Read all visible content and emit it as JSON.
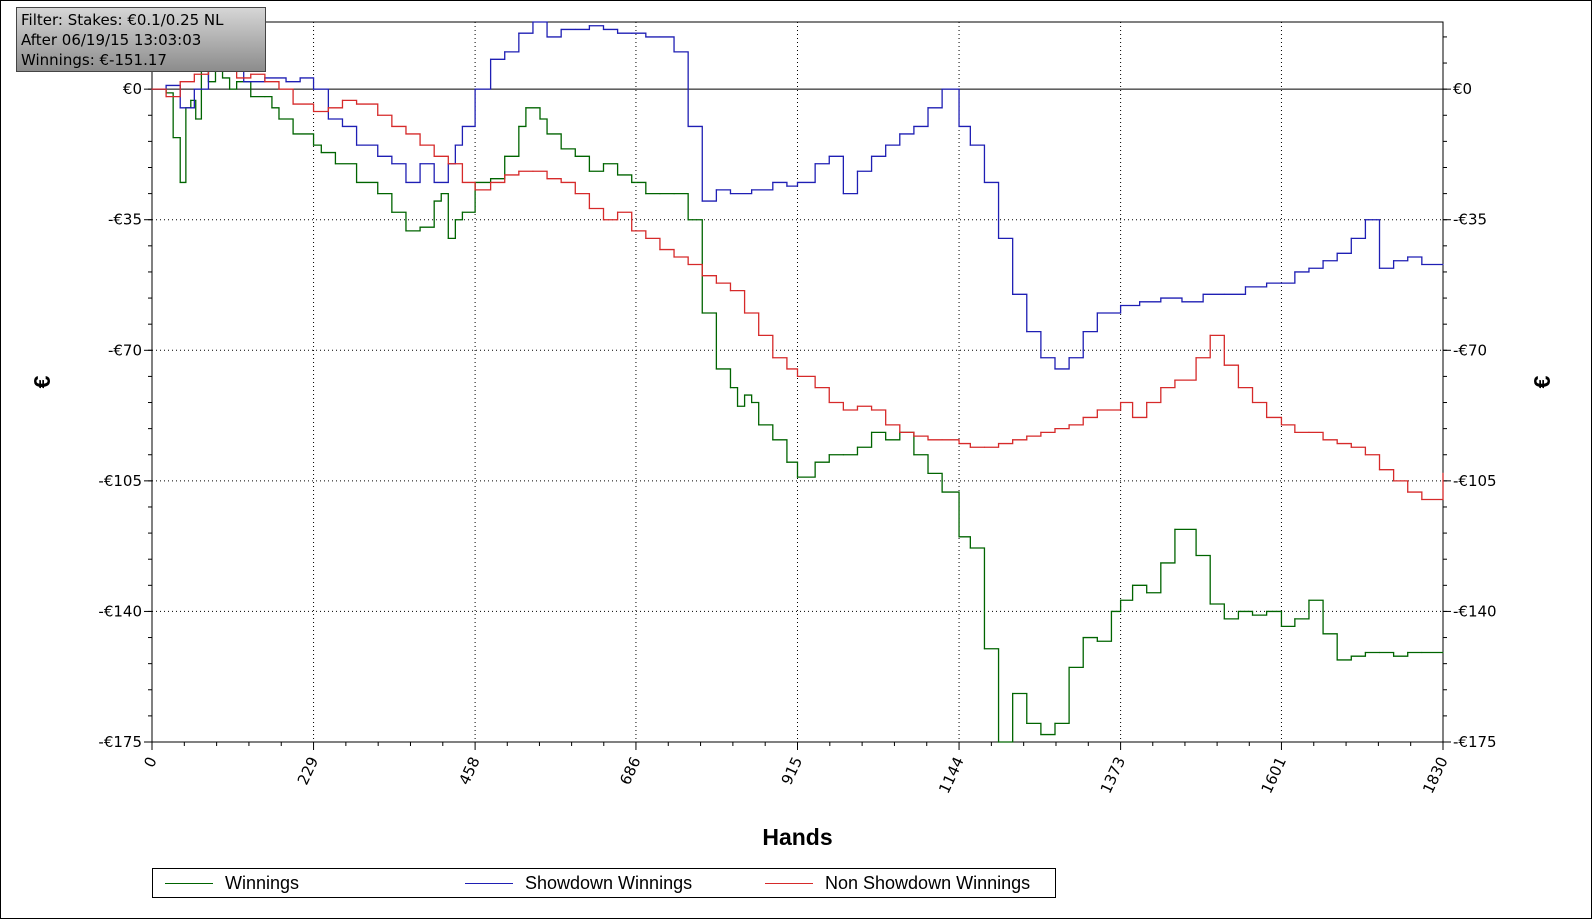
{
  "info": {
    "filter": "Filter: Stakes: €0.1/0.25 NL",
    "after": "After 06/19/15 13:03:03",
    "winnings": "Winnings: €-151.17"
  },
  "chart_data": {
    "type": "line",
    "xlabel": "Hands",
    "ylabel": "€",
    "xlim": [
      0,
      1830
    ],
    "ylim": [
      -175,
      18
    ],
    "x_ticks": [
      "0",
      "229",
      "458",
      "686",
      "915",
      "1144",
      "1373",
      "1601",
      "1830"
    ],
    "y_ticks": [
      "€0",
      "-€35",
      "-€70",
      "-€105",
      "-€140",
      "-€175"
    ],
    "y_tick_values": [
      0,
      -35,
      -70,
      -105,
      -140,
      -175
    ],
    "grid": true,
    "legend_position": "bottom",
    "series": [
      {
        "name": "Winnings",
        "color": "#006400",
        "x": [
          0,
          20,
          30,
          40,
          48,
          55,
          62,
          70,
          80,
          90,
          100,
          110,
          120,
          140,
          160,
          170,
          180,
          200,
          229,
          240,
          260,
          290,
          320,
          340,
          360,
          380,
          400,
          410,
          420,
          430,
          440,
          458,
          480,
          500,
          520,
          530,
          550,
          560,
          580,
          600,
          620,
          640,
          660,
          680,
          700,
          720,
          740,
          760,
          780,
          800,
          820,
          825,
          830,
          840,
          850,
          860,
          880,
          900,
          915,
          940,
          960,
          980,
          1000,
          1020,
          1040,
          1060,
          1080,
          1100,
          1120,
          1144,
          1160,
          1180,
          1200,
          1220,
          1240,
          1260,
          1280,
          1300,
          1320,
          1340,
          1360,
          1373,
          1390,
          1410,
          1430,
          1450,
          1480,
          1500,
          1520,
          1540,
          1560,
          1580,
          1601,
          1620,
          1640,
          1660,
          1680,
          1700,
          1720,
          1740,
          1760,
          1780,
          1800,
          1830
        ],
        "y": [
          0,
          -1,
          -13,
          -25,
          -5,
          -3,
          -8,
          5,
          2,
          8,
          3,
          0,
          2,
          -2,
          -2,
          -5,
          -8,
          -12,
          -15,
          -17,
          -20,
          -25,
          -28,
          -33,
          -38,
          -37,
          -30,
          -28,
          -40,
          -35,
          -33,
          -25,
          -24,
          -18,
          -10,
          -5,
          -8,
          -12,
          -16,
          -18,
          -22,
          -20,
          -23,
          -25,
          -28,
          -28,
          -28,
          -35,
          -60,
          -75,
          -80,
          -80,
          -85,
          -82,
          -84,
          -90,
          -94,
          -100,
          -104,
          -100,
          -98,
          -98,
          -96,
          -92,
          -94,
          -92,
          -98,
          -103,
          -108,
          -120,
          -123,
          -150,
          -175,
          -162,
          -170,
          -173,
          -170,
          -155,
          -147,
          -148,
          -140,
          -137,
          -133,
          -135,
          -127,
          -118,
          -125,
          -138,
          -142,
          -140,
          -141,
          -140,
          -144,
          -142,
          -137,
          -146,
          -153,
          -152,
          -151,
          -151,
          -152,
          -151,
          -151,
          -151
        ]
      },
      {
        "name": "Showdown Winnings",
        "color": "#1f1fb4",
        "x": [
          0,
          20,
          40,
          60,
          80,
          100,
          130,
          160,
          190,
          210,
          229,
          250,
          270,
          290,
          320,
          340,
          360,
          380,
          400,
          420,
          430,
          440,
          458,
          480,
          500,
          520,
          540,
          560,
          580,
          600,
          620,
          640,
          660,
          680,
          700,
          720,
          740,
          760,
          780,
          800,
          820,
          850,
          880,
          900,
          915,
          940,
          960,
          980,
          1000,
          1020,
          1040,
          1060,
          1080,
          1100,
          1120,
          1144,
          1160,
          1180,
          1200,
          1220,
          1240,
          1260,
          1280,
          1300,
          1320,
          1340,
          1373,
          1400,
          1430,
          1460,
          1490,
          1520,
          1550,
          1580,
          1601,
          1620,
          1640,
          1660,
          1680,
          1700,
          1720,
          1740,
          1760,
          1780,
          1800,
          1830
        ],
        "y": [
          0,
          1,
          -5,
          0,
          5,
          15,
          2,
          3,
          2,
          3,
          0,
          -8,
          -10,
          -15,
          -18,
          -20,
          -25,
          -20,
          -25,
          -20,
          -15,
          -10,
          0,
          8,
          10,
          15,
          18,
          14,
          16,
          16,
          17,
          16,
          15,
          15,
          14,
          14,
          10,
          -10,
          -30,
          -27,
          -28,
          -27,
          -25,
          -26,
          -25,
          -20,
          -18,
          -28,
          -22,
          -18,
          -15,
          -12,
          -10,
          -5,
          0,
          -10,
          -15,
          -25,
          -40,
          -55,
          -65,
          -72,
          -75,
          -72,
          -65,
          -60,
          -58,
          -57,
          -56,
          -57,
          -55,
          -55,
          -53,
          -52,
          -52,
          -49,
          -48,
          -46,
          -44,
          -40,
          -35,
          -48,
          -46,
          -45,
          -47,
          -47
        ]
      },
      {
        "name": "Non Showdown Winnings",
        "color": "#d62a2a",
        "x": [
          0,
          20,
          40,
          60,
          80,
          100,
          120,
          140,
          160,
          180,
          200,
          229,
          250,
          270,
          290,
          320,
          340,
          360,
          380,
          400,
          420,
          440,
          458,
          480,
          500,
          520,
          540,
          560,
          580,
          600,
          620,
          640,
          660,
          680,
          700,
          720,
          740,
          760,
          780,
          800,
          820,
          840,
          860,
          880,
          900,
          915,
          940,
          960,
          980,
          1000,
          1020,
          1040,
          1060,
          1080,
          1100,
          1120,
          1144,
          1160,
          1180,
          1200,
          1220,
          1240,
          1260,
          1280,
          1300,
          1320,
          1340,
          1373,
          1390,
          1410,
          1430,
          1450,
          1480,
          1500,
          1520,
          1540,
          1560,
          1580,
          1601,
          1620,
          1640,
          1660,
          1680,
          1700,
          1720,
          1740,
          1760,
          1780,
          1800,
          1830
        ],
        "y": [
          0,
          -2,
          2,
          4,
          6,
          5,
          3,
          4,
          2,
          0,
          -4,
          -6,
          -5,
          -3,
          -4,
          -7,
          -10,
          -12,
          -15,
          -18,
          -20,
          -25,
          -27,
          -25,
          -23,
          -22,
          -22,
          -24,
          -25,
          -28,
          -32,
          -35,
          -33,
          -38,
          -40,
          -43,
          -45,
          -47,
          -50,
          -52,
          -54,
          -60,
          -66,
          -72,
          -75,
          -77,
          -80,
          -84,
          -86,
          -85,
          -86,
          -90,
          -92,
          -93,
          -94,
          -94,
          -95,
          -96,
          -96,
          -95,
          -94,
          -93,
          -92,
          -91,
          -90,
          -88,
          -86,
          -84,
          -88,
          -84,
          -80,
          -78,
          -72,
          -66,
          -74,
          -80,
          -84,
          -88,
          -90,
          -92,
          -92,
          -94,
          -95,
          -96,
          -98,
          -102,
          -105,
          -108,
          -110,
          -103
        ]
      }
    ]
  }
}
